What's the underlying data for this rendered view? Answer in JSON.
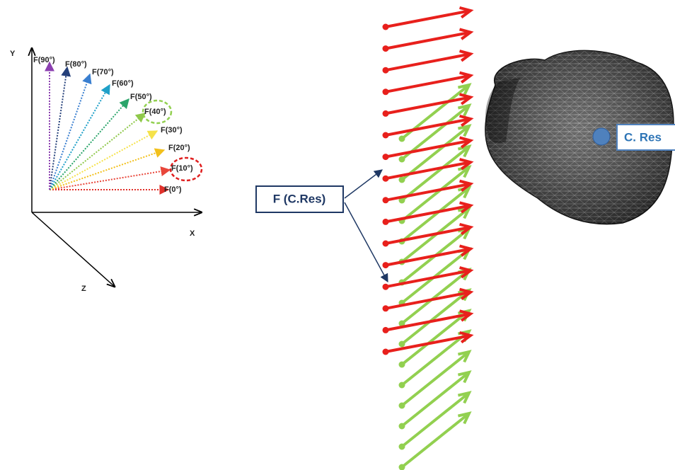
{
  "axes": {
    "y": "Y",
    "x": "X",
    "z": "Z"
  },
  "force_labels": [
    "F(0°)",
    "F(10°)",
    "F(20°)",
    "F(30°)",
    "F(40°)",
    "F(50°)",
    "F(60°)",
    "F(70°)",
    "F(80°)",
    "F(90°)"
  ],
  "callout": "F (C.Res)",
  "center_label": "C. Res"
}
